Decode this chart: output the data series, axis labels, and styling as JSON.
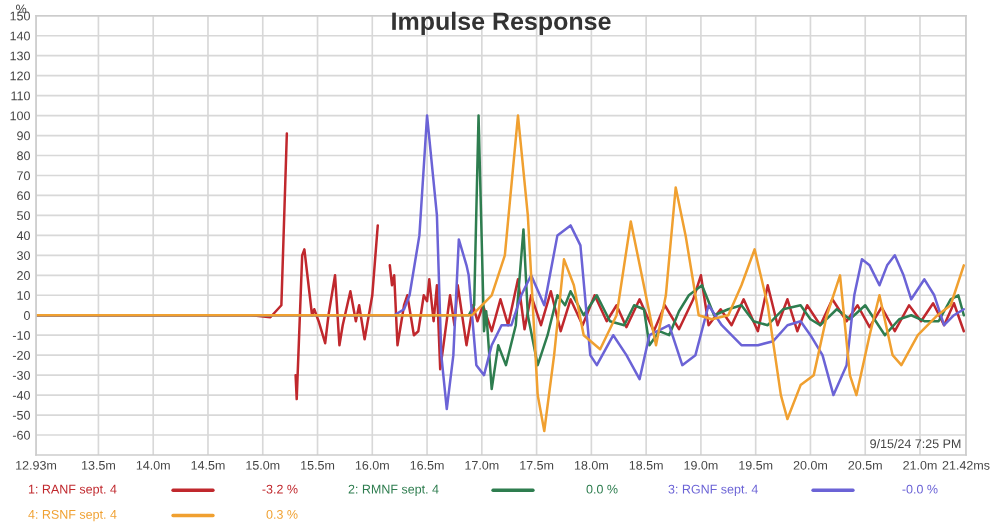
{
  "chart_data": {
    "type": "line",
    "title": "Impulse Response",
    "ylabel": "%",
    "xlim": [
      12.93,
      21.42
    ],
    "ylim": [
      -70,
      150
    ],
    "xticks": [
      {
        "value": 12.93,
        "label": "12.93m"
      },
      {
        "value": 13.5,
        "label": "13.5m"
      },
      {
        "value": 14.0,
        "label": "14.0m"
      },
      {
        "value": 14.5,
        "label": "14.5m"
      },
      {
        "value": 15.0,
        "label": "15.0m"
      },
      {
        "value": 15.5,
        "label": "15.5m"
      },
      {
        "value": 16.0,
        "label": "16.0m"
      },
      {
        "value": 16.5,
        "label": "16.5m"
      },
      {
        "value": 17.0,
        "label": "17.0m"
      },
      {
        "value": 17.5,
        "label": "17.5m"
      },
      {
        "value": 18.0,
        "label": "18.0m"
      },
      {
        "value": 18.5,
        "label": "18.5m"
      },
      {
        "value": 19.0,
        "label": "19.0m"
      },
      {
        "value": 19.5,
        "label": "19.5m"
      },
      {
        "value": 20.0,
        "label": "20.0m"
      },
      {
        "value": 20.5,
        "label": "20.5m"
      },
      {
        "value": 21.0,
        "label": "21.0m"
      },
      {
        "value": 21.42,
        "label": "21.42ms"
      }
    ],
    "yticks": [
      -60,
      -50,
      -40,
      -30,
      -20,
      -10,
      0,
      10,
      20,
      30,
      40,
      50,
      60,
      70,
      80,
      90,
      100,
      110,
      120,
      130,
      140,
      150
    ],
    "grid": true,
    "legend": "bottom",
    "annotations": [
      "9/15/24 7:25 PM",
      "-3.2 %",
      "0.0 %",
      "-0.0 %",
      "0.3 %"
    ],
    "series": [
      {
        "name": "1: RANF sept. 4",
        "color": "#c0282d",
        "x": [
          12.93,
          14.89,
          15.07,
          15.17,
          15.22,
          15.26,
          15.3,
          15.31,
          15.36,
          15.38,
          15.45,
          15.47,
          15.51,
          15.57,
          15.6,
          15.66,
          15.7,
          15.73,
          15.8,
          15.85,
          15.88,
          15.93,
          16.0,
          16.05,
          16.09,
          16.16,
          16.18,
          16.2,
          16.23,
          16.29,
          16.32,
          16.38,
          16.42,
          16.47,
          16.5,
          16.52,
          16.56,
          16.59,
          16.62,
          16.65,
          16.71,
          16.75,
          16.78,
          16.86,
          16.92,
          16.96,
          17.01,
          17.09,
          17.17,
          17.24,
          17.33,
          17.39,
          17.45,
          17.54,
          17.63,
          17.72,
          17.81,
          17.92,
          18.03,
          18.14,
          18.23,
          18.32,
          18.44,
          18.57,
          18.67,
          18.8,
          18.93,
          19.0,
          19.07,
          19.18,
          19.28,
          19.39,
          19.52,
          19.61,
          19.7,
          19.79,
          19.88,
          19.97,
          20.09,
          20.2,
          20.33,
          20.43,
          20.54,
          20.65,
          20.77,
          20.9,
          21.01,
          21.12,
          21.22,
          21.31,
          21.4
        ],
        "values": [
          0,
          0,
          -1,
          5,
          91,
          null,
          -30,
          -42,
          30,
          33,
          0,
          3,
          -3,
          -14,
          0,
          20,
          -15,
          -5,
          12,
          -3,
          5,
          -12,
          10,
          45,
          null,
          25,
          15,
          20,
          -15,
          5,
          10,
          -10,
          -8,
          10,
          7,
          18,
          -3,
          15,
          -27,
          -15,
          10,
          -5,
          15,
          -15,
          5,
          -3,
          5,
          -8,
          8,
          -5,
          18,
          -7,
          10,
          -5,
          12,
          -8,
          8,
          -5,
          10,
          -3,
          5,
          -6,
          8,
          -8,
          5,
          -7,
          8,
          20,
          -5,
          3,
          -5,
          8,
          -8,
          15,
          -5,
          8,
          -8,
          5,
          -5,
          8,
          -3,
          5,
          -6,
          4,
          -8,
          5,
          -3,
          6,
          -5,
          6,
          -8
        ]
      },
      {
        "name": "2: RMNF sept. 4",
        "color": "#2e7d4f",
        "x": [
          12.93,
          16.88,
          16.93,
          16.97,
          17.02,
          17.04,
          17.09,
          17.15,
          17.22,
          17.31,
          17.38,
          17.42,
          17.51,
          17.6,
          17.69,
          17.76,
          17.81,
          17.93,
          18.05,
          18.17,
          18.3,
          18.39,
          18.48,
          18.53,
          18.62,
          18.71,
          18.8,
          18.89,
          19.01,
          19.12,
          19.25,
          19.37,
          19.48,
          19.61,
          19.75,
          19.91,
          20.0,
          20.09,
          20.24,
          20.36,
          20.5,
          20.68,
          20.81,
          20.92,
          21.04,
          21.17,
          21.28,
          21.35,
          21.4
        ],
        "values": [
          0,
          0,
          5,
          100,
          -8,
          2,
          -37,
          -15,
          -25,
          -5,
          43,
          0,
          -25,
          -10,
          10,
          5,
          12,
          0,
          10,
          -3,
          -5,
          5,
          3,
          -15,
          -8,
          -10,
          2,
          10,
          15,
          0,
          3,
          5,
          -3,
          -5,
          3,
          5,
          -2,
          -5,
          3,
          -2,
          5,
          -10,
          -2,
          0,
          -3,
          -3,
          8,
          10,
          0
        ]
      },
      {
        "name": "3: RGNF sept. 4",
        "color": "#6b63d6",
        "x": [
          12.93,
          16.2,
          16.29,
          16.34,
          16.43,
          16.5,
          16.59,
          16.63,
          16.68,
          16.74,
          16.79,
          16.86,
          16.88,
          16.95,
          17.02,
          17.09,
          17.18,
          17.27,
          17.36,
          17.45,
          17.57,
          17.69,
          17.81,
          17.9,
          17.99,
          18.05,
          18.2,
          18.32,
          18.44,
          18.53,
          18.71,
          18.83,
          18.95,
          19.07,
          19.19,
          19.37,
          19.52,
          19.66,
          19.79,
          19.91,
          20.0,
          20.11,
          20.21,
          20.33,
          20.4,
          20.47,
          20.54,
          20.63,
          20.7,
          20.77,
          20.85,
          20.92,
          21.04,
          21.13,
          21.22,
          21.31,
          21.4
        ],
        "values": [
          0,
          0,
          3,
          10,
          40,
          100,
          50,
          -20,
          -47,
          -20,
          38,
          25,
          20,
          -25,
          -30,
          -15,
          -5,
          -5,
          10,
          20,
          5,
          40,
          45,
          35,
          -20,
          -25,
          -10,
          -20,
          -32,
          -10,
          -5,
          -25,
          -20,
          5,
          -5,
          -15,
          -15,
          -13,
          -5,
          -3,
          -10,
          -20,
          -40,
          -25,
          10,
          28,
          25,
          15,
          25,
          30,
          20,
          8,
          18,
          10,
          -5,
          0,
          3
        ]
      },
      {
        "name": "4: RSNF sept. 4",
        "color": "#f0a030",
        "x": [
          12.93,
          16.91,
          17.0,
          17.09,
          17.21,
          17.33,
          17.42,
          17.51,
          17.57,
          17.66,
          17.75,
          17.84,
          17.93,
          18.08,
          18.23,
          18.36,
          18.46,
          18.59,
          18.68,
          18.77,
          18.86,
          18.98,
          19.1,
          19.25,
          19.37,
          19.49,
          19.61,
          19.73,
          19.79,
          19.91,
          20.03,
          20.15,
          20.27,
          20.36,
          20.42,
          20.54,
          20.63,
          20.75,
          20.83,
          20.98,
          21.16,
          21.28,
          21.4
        ],
        "values": [
          0,
          0,
          5,
          10,
          30,
          100,
          50,
          -40,
          -58,
          -20,
          28,
          15,
          -10,
          -17,
          0,
          47,
          20,
          -15,
          10,
          64,
          40,
          0,
          -2,
          0,
          15,
          33,
          5,
          -40,
          -52,
          -35,
          -30,
          0,
          20,
          -30,
          -40,
          -10,
          10,
          -20,
          -25,
          -10,
          0,
          5,
          25
        ]
      }
    ]
  }
}
